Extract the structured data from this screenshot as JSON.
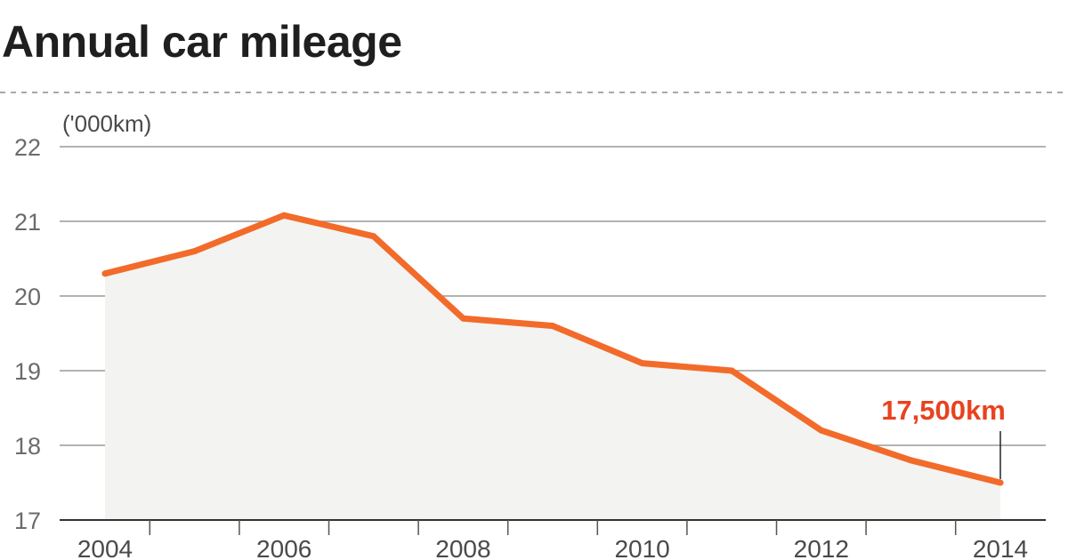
{
  "chart_data": {
    "type": "line",
    "title": "Annual car mileage",
    "unit_label": "('000km)",
    "x": [
      2004,
      2005,
      2006,
      2007,
      2008,
      2009,
      2010,
      2011,
      2012,
      2013,
      2014
    ],
    "x_tick_labels": [
      "2004",
      "2006",
      "2008",
      "2010",
      "2012",
      "2014"
    ],
    "y_tick_labels": [
      "17",
      "18",
      "19",
      "20",
      "21",
      "22"
    ],
    "ylim": [
      17,
      22
    ],
    "series": [
      {
        "values": [
          20.3,
          20.6,
          21.08,
          20.8,
          19.7,
          19.6,
          19.1,
          19.0,
          18.2,
          17.8,
          17.5
        ]
      }
    ],
    "annotation": {
      "text": "17,500km",
      "x": 2014
    },
    "grid": true,
    "colors": {
      "line": "#F26B2A",
      "annotation": "#E8421F",
      "area": "#F3F3F1",
      "grid": "#9a9a9a",
      "axis": "#333333"
    }
  }
}
